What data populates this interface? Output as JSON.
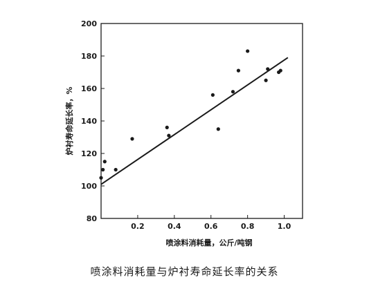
{
  "caption": "喷涂料消耗量与炉衬寿命延长率的关系",
  "chart_data": {
    "type": "scatter",
    "title": "",
    "xlabel": "喷涂料消耗量，公斤/吨钢",
    "ylabel": "炉衬寿命延长率，%",
    "xlim": [
      0,
      1.1
    ],
    "ylim": [
      80,
      200
    ],
    "x_ticks": [
      0.2,
      0.4,
      0.6,
      0.8,
      1.0
    ],
    "x_tick_labels": [
      "0.2",
      "0.4",
      "0.6",
      "0.8",
      "1.0"
    ],
    "y_ticks": [
      80,
      100,
      120,
      140,
      160,
      180,
      200
    ],
    "y_tick_labels": [
      "80",
      "100",
      "120",
      "140",
      "160",
      "180",
      "200"
    ],
    "grid": false,
    "series": [
      {
        "points": [
          {
            "x": 0.0,
            "y": 105
          },
          {
            "x": 0.01,
            "y": 110
          },
          {
            "x": 0.02,
            "y": 115
          },
          {
            "x": 0.08,
            "y": 110
          },
          {
            "x": 0.17,
            "y": 129
          },
          {
            "x": 0.36,
            "y": 136
          },
          {
            "x": 0.37,
            "y": 131
          },
          {
            "x": 0.61,
            "y": 156
          },
          {
            "x": 0.64,
            "y": 135
          },
          {
            "x": 0.72,
            "y": 158
          },
          {
            "x": 0.75,
            "y": 171
          },
          {
            "x": 0.8,
            "y": 183
          },
          {
            "x": 0.9,
            "y": 165
          },
          {
            "x": 0.91,
            "y": 172
          },
          {
            "x": 0.97,
            "y": 170
          },
          {
            "x": 0.98,
            "y": 171
          }
        ]
      }
    ],
    "fit_line": {
      "x": [
        0.0,
        1.02
      ],
      "y": [
        101,
        179
      ]
    },
    "colors": {
      "ink": "#1a1a1a"
    }
  }
}
